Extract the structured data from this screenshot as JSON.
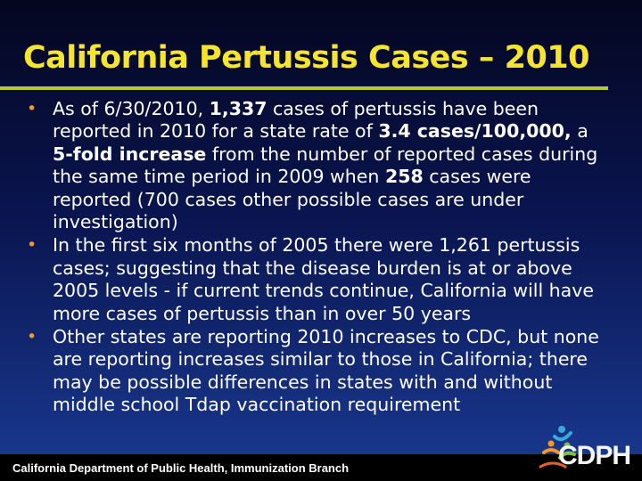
{
  "slide": {
    "title": "California Pertussis Cases – 2010",
    "bullets": [
      {
        "segments": [
          {
            "t": "As of 6/30/2010, "
          },
          {
            "t": "1,337",
            "b": true
          },
          {
            "t": " cases of pertussis have been reported in 2010 for a state rate of "
          },
          {
            "t": "3.4 cases/100,000,",
            "b": true
          },
          {
            "t": " a "
          },
          {
            "t": "5-fold increase",
            "b": true
          },
          {
            "t": " from the number of reported cases during the same time period in 2009 when "
          },
          {
            "t": "258",
            "b": true
          },
          {
            "t": " cases were reported (700 cases other possible cases are under investigation)"
          }
        ]
      },
      {
        "segments": [
          {
            "t": "In the first six months of 2005 there were 1,261 pertussis cases; suggesting that the disease burden is at or above 2005 levels - if current trends continue, California will have more cases of pertussis than in over 50 years"
          }
        ]
      },
      {
        "segments": [
          {
            "t": "Other states are reporting 2010 increases to CDC, but none are reporting increases similar to those in California; there may be possible differences in states with and without middle school Tdap vaccination requirement"
          }
        ]
      }
    ],
    "bullet_marker": "•",
    "footer": "California Department of Public Health, Immunization Branch",
    "logo_text": "CDPH",
    "colors": {
      "title": "#f5e530",
      "rule": "#b7c82e",
      "bullet_marker": "#f39b1d",
      "text": "#ffffff"
    }
  }
}
